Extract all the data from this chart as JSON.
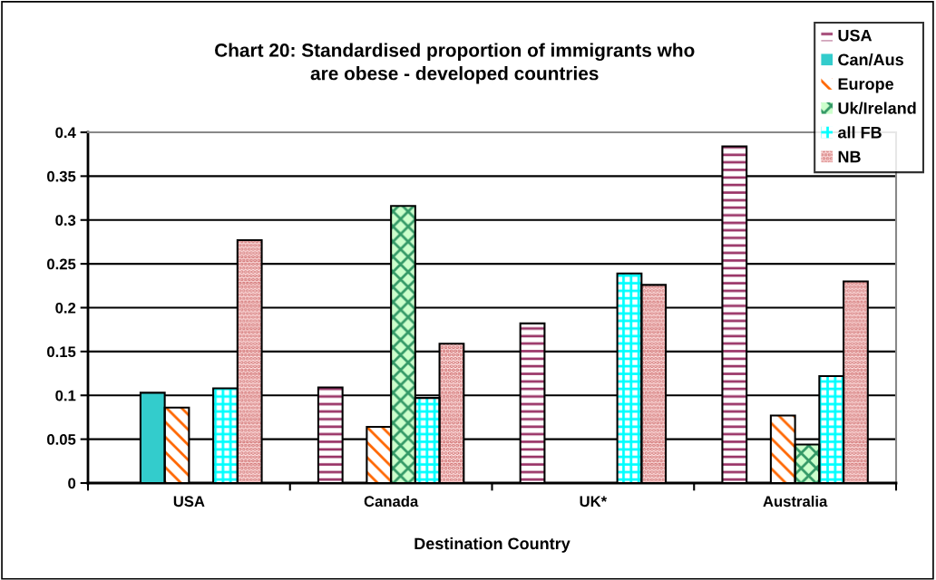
{
  "chart_data": {
    "type": "bar",
    "title": "Chart 20: Standardised proportion of immigrants who\nare obese - developed countries",
    "xlabel": "Destination Country",
    "categories": [
      "USA",
      "Canada",
      "UK*",
      "Australia"
    ],
    "series": [
      {
        "name": "USA",
        "color": "#993366",
        "values": [
          null,
          0.109,
          0.182,
          0.384
        ]
      },
      {
        "name": "Can/Aus",
        "color": "#33cccc",
        "values": [
          0.103,
          null,
          null,
          null
        ]
      },
      {
        "name": "Europe",
        "color": "#ff6600",
        "values": [
          0.086,
          0.064,
          null,
          0.077
        ]
      },
      {
        "name": "Uk/Ireland",
        "color": "#339966",
        "values": [
          null,
          0.316,
          null,
          0.044
        ]
      },
      {
        "name": "all FB",
        "color": "#00ffff",
        "values": [
          0.108,
          0.097,
          0.239,
          0.122
        ]
      },
      {
        "name": "NB",
        "color": "#cc6666",
        "values": [
          0.277,
          0.159,
          0.226,
          0.23
        ]
      }
    ],
    "ylim": [
      0,
      0.4
    ],
    "yticks": [
      {
        "value": 0,
        "label": "0"
      },
      0.05,
      0.1,
      0.15,
      0.2,
      0.25,
      0.3,
      0.35,
      0.4
    ],
    "grid": "y",
    "legend": "top right"
  }
}
